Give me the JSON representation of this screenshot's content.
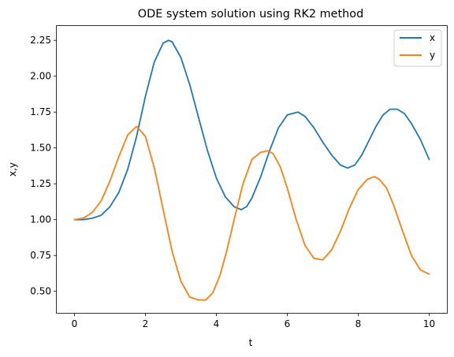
{
  "chart_data": {
    "type": "line",
    "title": "ODE system solution using RK2 method",
    "xlabel": "t",
    "ylabel": "x,y",
    "xlim": [
      -0.5,
      10.5
    ],
    "ylim": [
      0.35,
      2.35
    ],
    "xticks": [
      0,
      2,
      4,
      6,
      8,
      10
    ],
    "xtick_labels": [
      "0",
      "2",
      "4",
      "6",
      "8",
      "10"
    ],
    "yticks": [
      0.5,
      0.75,
      1.0,
      1.25,
      1.5,
      1.75,
      2.0,
      2.25
    ],
    "ytick_labels": [
      "0.50",
      "0.75",
      "1.00",
      "1.25",
      "1.50",
      "1.75",
      "2.00",
      "2.25"
    ],
    "grid": false,
    "legend_position": "top-right",
    "series": [
      {
        "name": "x",
        "color": "#1f77b4",
        "x": [
          0,
          0.25,
          0.5,
          0.75,
          1.0,
          1.25,
          1.5,
          1.75,
          2.0,
          2.25,
          2.5,
          2.65,
          2.75,
          3.0,
          3.25,
          3.5,
          3.75,
          4.0,
          4.25,
          4.5,
          4.7,
          4.85,
          5.0,
          5.25,
          5.5,
          5.75,
          6.0,
          6.3,
          6.5,
          6.75,
          7.0,
          7.25,
          7.5,
          7.7,
          7.9,
          8.1,
          8.3,
          8.5,
          8.7,
          8.9,
          9.1,
          9.3,
          9.5,
          9.75,
          10.0
        ],
        "values": [
          1.0,
          1.0,
          1.01,
          1.03,
          1.09,
          1.19,
          1.35,
          1.58,
          1.86,
          2.1,
          2.23,
          2.25,
          2.24,
          2.13,
          1.94,
          1.71,
          1.48,
          1.29,
          1.16,
          1.09,
          1.07,
          1.09,
          1.15,
          1.3,
          1.48,
          1.64,
          1.73,
          1.75,
          1.72,
          1.64,
          1.54,
          1.45,
          1.38,
          1.36,
          1.38,
          1.45,
          1.55,
          1.65,
          1.73,
          1.77,
          1.77,
          1.74,
          1.67,
          1.56,
          1.42
        ]
      },
      {
        "name": "y",
        "color": "#ff7f0e",
        "x": [
          0,
          0.25,
          0.5,
          0.75,
          1.0,
          1.25,
          1.5,
          1.75,
          2.0,
          2.25,
          2.5,
          2.75,
          3.0,
          3.25,
          3.5,
          3.7,
          3.9,
          4.1,
          4.3,
          4.5,
          4.75,
          5.0,
          5.25,
          5.45,
          5.6,
          5.8,
          6.0,
          6.25,
          6.5,
          6.75,
          7.0,
          7.25,
          7.5,
          7.75,
          8.0,
          8.25,
          8.45,
          8.6,
          8.8,
          9.0,
          9.25,
          9.5,
          9.75,
          10.0
        ],
        "values": [
          1.0,
          1.01,
          1.05,
          1.13,
          1.27,
          1.44,
          1.59,
          1.65,
          1.58,
          1.36,
          1.07,
          0.78,
          0.57,
          0.46,
          0.44,
          0.44,
          0.49,
          0.61,
          0.79,
          1.0,
          1.25,
          1.42,
          1.47,
          1.48,
          1.46,
          1.37,
          1.22,
          1.0,
          0.82,
          0.73,
          0.72,
          0.79,
          0.92,
          1.08,
          1.21,
          1.28,
          1.3,
          1.28,
          1.22,
          1.1,
          0.92,
          0.75,
          0.65,
          0.62
        ]
      }
    ]
  }
}
